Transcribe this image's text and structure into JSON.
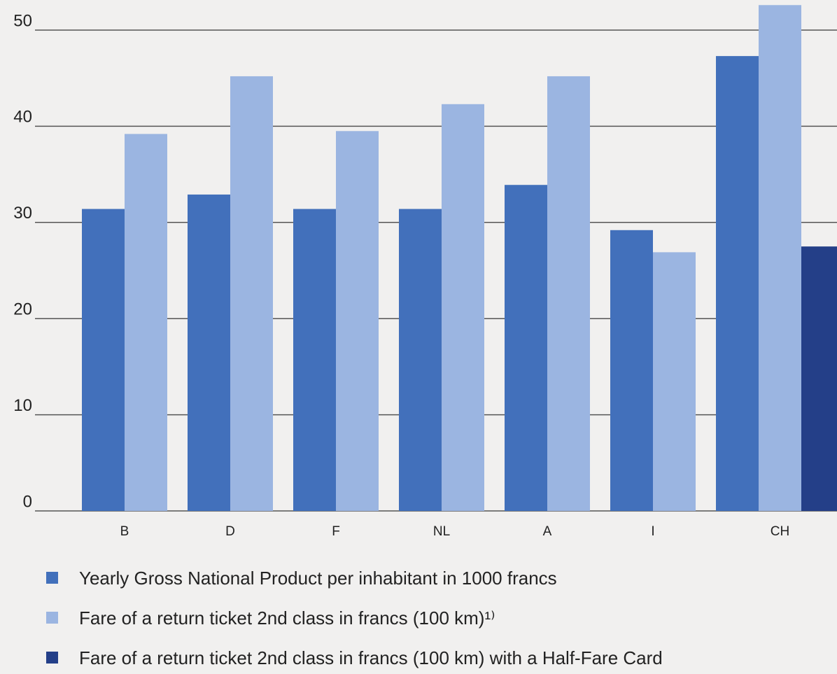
{
  "chart_data": {
    "type": "bar",
    "categories": [
      "B",
      "D",
      "F",
      "NL",
      "A",
      "I",
      "CH"
    ],
    "series": [
      {
        "name": "Yearly Gross National Product per inhabitant in 1000 francs",
        "color": "#4270bb",
        "values": [
          31.4,
          32.9,
          31.4,
          31.4,
          33.9,
          29.2,
          47.3
        ]
      },
      {
        "name": "Fare of a return ticket 2nd class in francs (100 km)¹⁾",
        "color": "#9bb5e1",
        "values": [
          39.2,
          45.2,
          39.5,
          42.3,
          45.2,
          26.9,
          52.6
        ]
      },
      {
        "name": "Fare of a return ticket 2nd class in francs (100 km) with a Half-Fare Card",
        "color": "#243f88",
        "values": [
          null,
          null,
          null,
          null,
          null,
          null,
          27.5
        ]
      }
    ],
    "ylim": [
      0,
      53
    ],
    "yticks": [
      0,
      10,
      20,
      30,
      40,
      50
    ],
    "grid": true,
    "legend": "bottom"
  }
}
